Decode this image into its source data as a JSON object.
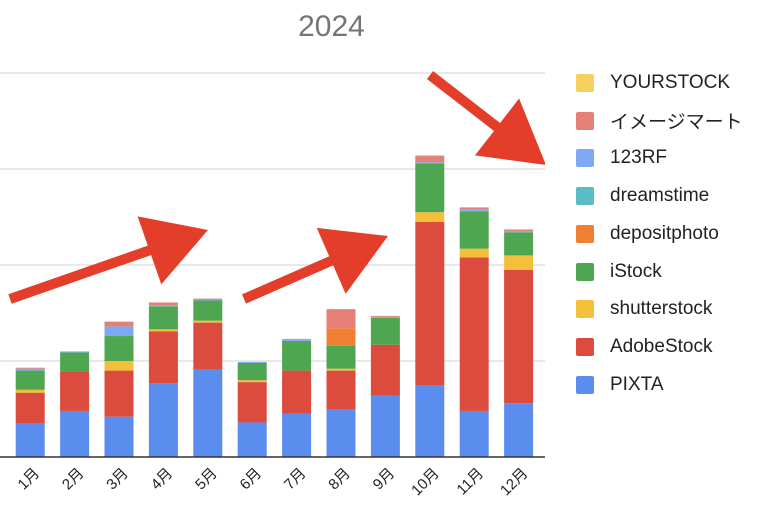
{
  "chart_data": {
    "type": "bar",
    "stacked": true,
    "title": "2024",
    "xlabel": "",
    "ylabel": "",
    "categories": [
      "1月",
      "2月",
      "3月",
      "4月",
      "5月",
      "6月",
      "7月",
      "8月",
      "9月",
      "10月",
      "11月",
      "12月"
    ],
    "ylim": [
      0,
      400
    ],
    "grid": true,
    "legend_position": "right",
    "series": [
      {
        "name": "PIXTA",
        "color": "#5B8DEF",
        "values": [
          35,
          48,
          42,
          77,
          91,
          36,
          45,
          50,
          64,
          75,
          48,
          56
        ]
      },
      {
        "name": "AdobeStock",
        "color": "#DB4B3E",
        "values": [
          32,
          41,
          48,
          54,
          49,
          42,
          45,
          40,
          53,
          170,
          160,
          139
        ]
      },
      {
        "name": "shutterstock",
        "color": "#F4BF3A",
        "values": [
          3,
          0,
          10,
          2,
          2,
          2,
          0,
          2,
          0,
          10,
          9,
          15
        ]
      },
      {
        "name": "iStock",
        "color": "#4FA651",
        "values": [
          20,
          20,
          26,
          24,
          21,
          18,
          31,
          24,
          28,
          51,
          39,
          24
        ]
      },
      {
        "name": "depositphoto",
        "color": "#F08031",
        "values": [
          0,
          0,
          0,
          0,
          0,
          0,
          0,
          18,
          0,
          0,
          0,
          0
        ]
      },
      {
        "name": "dreamstime",
        "color": "#5BBCC6",
        "values": [
          0,
          0,
          0,
          0,
          0,
          0,
          0,
          0,
          0,
          0,
          0,
          0
        ]
      },
      {
        "name": "123RF",
        "color": "#7FA9F5",
        "values": [
          2,
          1,
          10,
          1,
          1,
          1,
          1,
          0,
          1,
          1,
          2,
          1
        ]
      },
      {
        "name": "イメージマート",
        "color": "#E58076",
        "values": [
          1,
          0,
          5,
          3,
          1,
          0,
          1,
          20,
          1,
          7,
          2,
          2
        ]
      },
      {
        "name": "YOURSTOCK",
        "color": "#F6D15E",
        "values": [
          0,
          0,
          0,
          0,
          0,
          0,
          0,
          0,
          0,
          0,
          0,
          0
        ]
      }
    ],
    "annotations": [
      {
        "type": "arrow",
        "color": "#E43E2B",
        "direction": "up-right",
        "count": 3,
        "last": "down-right"
      }
    ]
  }
}
